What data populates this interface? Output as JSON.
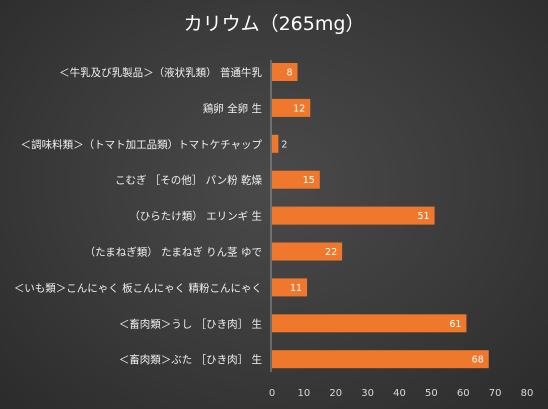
{
  "chart_data": {
    "type": "bar",
    "orientation": "horizontal",
    "title": "カリウム（265mg）",
    "categories": [
      "＜牛乳及び乳製品＞（液状乳類） 普通牛乳",
      "鶏卵 全卵 生",
      "＜調味料類＞（トマト加工品類）トマトケチャップ",
      "こむぎ ［その他］ パン粉 乾燥",
      "（ひらたけ類） エリンギ 生",
      "（たまねぎ類） たまねぎ りん茎 ゆで",
      "＜いも類＞こんにゃく 板こんにゃく 精粉こんにゃく",
      "＜畜肉類＞うし ［ひき肉］ 生",
      "＜畜肉類＞ぶた ［ひき肉］ 生"
    ],
    "values": [
      8,
      12,
      2,
      15,
      51,
      22,
      11,
      61,
      68
    ],
    "xlim": [
      0,
      80
    ],
    "xticks": [
      0,
      10,
      20,
      30,
      40,
      50,
      60,
      70,
      80
    ],
    "grid": false,
    "bar_color": "#f0782d"
  }
}
